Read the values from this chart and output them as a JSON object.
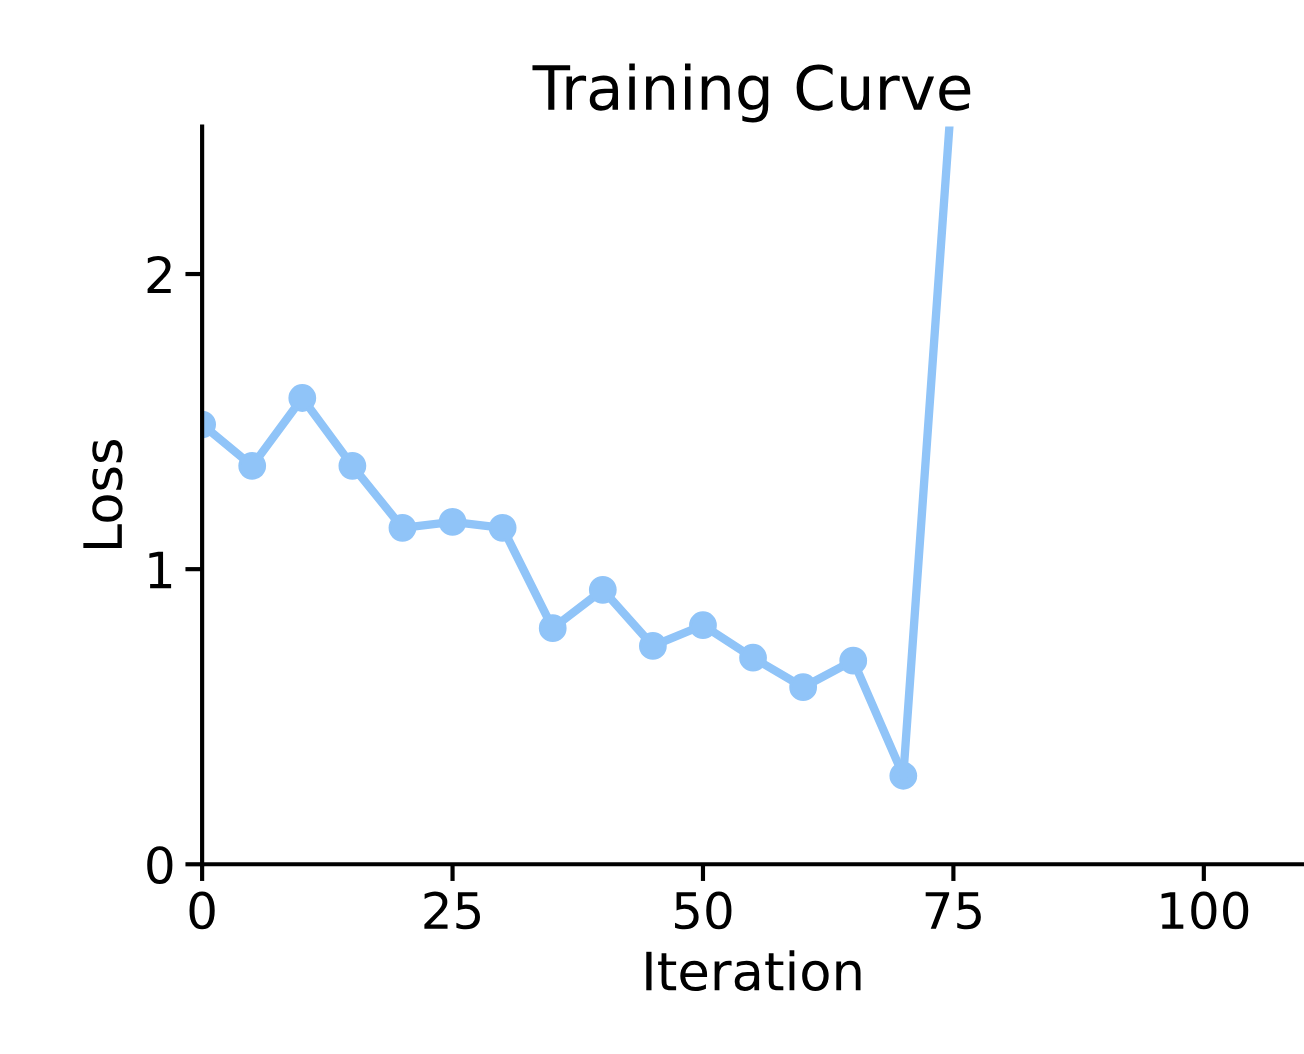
{
  "chart_data": {
    "type": "line",
    "title": "Training Curve",
    "xlabel": "Iteration",
    "ylabel": "Loss",
    "xlim": [
      0,
      110
    ],
    "ylim": [
      0,
      2.5
    ],
    "xticks": [
      0,
      25,
      50,
      75,
      100
    ],
    "yticks": [
      0,
      1,
      2
    ],
    "grid": false,
    "series": [
      {
        "color": "#90c4f8",
        "marker": "circle",
        "x": [
          0,
          5,
          10,
          15,
          20,
          25,
          30,
          35,
          40,
          45,
          50,
          55,
          60,
          65,
          70
        ],
        "values": [
          1.49,
          1.35,
          1.58,
          1.35,
          1.14,
          1.16,
          1.14,
          0.8,
          0.93,
          0.74,
          0.81,
          0.7,
          0.6,
          0.69,
          0.3
        ]
      },
      {
        "color": "#90c4f8",
        "marker": "none",
        "x": [
          70,
          74.6
        ],
        "values": [
          0.3,
          2.5
        ]
      }
    ]
  }
}
